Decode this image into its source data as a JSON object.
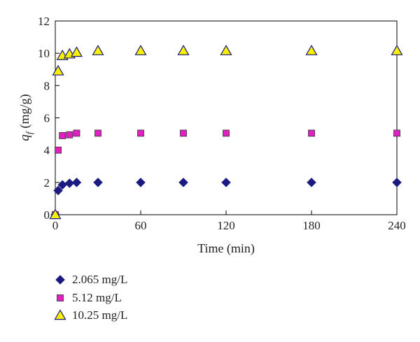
{
  "chart_data": {
    "type": "scatter",
    "title": "",
    "xlabel": "Time (min)",
    "ylabel": {
      "symbol": "q",
      "subscript": "f",
      "unit": "(mg/g)"
    },
    "xlim": [
      0,
      240
    ],
    "ylim": [
      0,
      12
    ],
    "xticks": [
      0,
      60,
      120,
      180,
      240
    ],
    "yticks": [
      0,
      2,
      4,
      6,
      8,
      10,
      12
    ],
    "grid": false,
    "legend": "below",
    "series": [
      {
        "name": "2.065 mg/L",
        "marker": "diamond",
        "color": "#1a1a80",
        "x": [
          0,
          2,
          5,
          10,
          15,
          30,
          60,
          90,
          120,
          180,
          240
        ],
        "y": [
          0,
          1.5,
          1.85,
          1.95,
          2.0,
          2.0,
          2.0,
          2.0,
          2.0,
          2.0,
          2.0
        ]
      },
      {
        "name": "5.12 mg/L",
        "marker": "square",
        "color": "#e020c0",
        "x": [
          0,
          2,
          5,
          10,
          15,
          30,
          60,
          90,
          120,
          180,
          240
        ],
        "y": [
          0,
          4.0,
          4.9,
          4.95,
          5.05,
          5.05,
          5.05,
          5.05,
          5.05,
          5.05,
          5.05
        ]
      },
      {
        "name": "10.25 mg/L",
        "marker": "triangle",
        "color": "#f5f000",
        "x": [
          0,
          2,
          5,
          10,
          15,
          30,
          60,
          90,
          120,
          180,
          240
        ],
        "y": [
          0,
          8.9,
          9.85,
          9.95,
          10.05,
          10.15,
          10.15,
          10.15,
          10.15,
          10.15,
          10.15
        ]
      }
    ]
  }
}
